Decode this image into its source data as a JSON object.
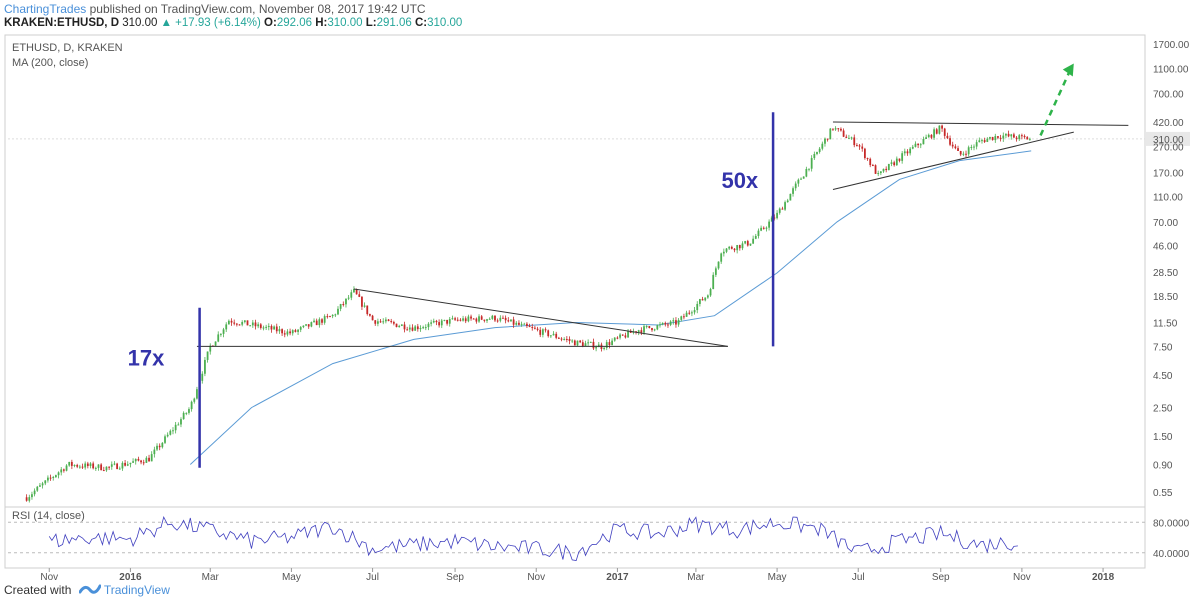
{
  "header": {
    "publisher": "ChartingTrades",
    "published_text": "published on TradingView.com, November 08, 2017 19:42 UTC"
  },
  "ticker": {
    "symbol": "KRAKEN:ETHUSD, D",
    "last": "310.00",
    "change": "▲ +17.93 (+6.14%)",
    "o_label": "O:",
    "o": "292.06",
    "h_label": "H:",
    "h": "310.00",
    "l_label": "L:",
    "l": "291.06",
    "c_label": "C:",
    "c": "310.00"
  },
  "main_panel": {
    "title": "ETHUSD, D, KRAKEN",
    "indicator": "MA (200, close)",
    "annotation_left": "17x",
    "annotation_right": "50x"
  },
  "rsi_panel": {
    "title": "RSI (14, close)"
  },
  "footer": {
    "created_with": "Created with",
    "brand": "TradingView"
  },
  "colors": {
    "candle_up": "#4caf50",
    "candle_down": "#c62828",
    "ma_line": "#5b9bd5",
    "rsi_line": "#3f3fbf",
    "annotation": "#3333aa",
    "arrow": "#2eb34a",
    "trendline": "#333333"
  },
  "chart_data": [
    {
      "type": "line",
      "title": "ETHUSD, D, KRAKEN",
      "scale": "log",
      "y_ticks": [
        "1700.00",
        "1100.00",
        "700.00",
        "420.00",
        "310.00",
        "270.00",
        "170.00",
        "110.00",
        "70.00",
        "46.00",
        "28.50",
        "18.50",
        "11.50",
        "7.50",
        "4.50",
        "2.50",
        "1.50",
        "0.90",
        "0.55"
      ],
      "x_ticks": [
        "Nov",
        "2016",
        "Mar",
        "May",
        "Jul",
        "Sep",
        "Nov",
        "2017",
        "Mar",
        "May",
        "Jul",
        "Sep",
        "Nov",
        "2018"
      ],
      "current_price_label": "310.00",
      "series": [
        {
          "name": "ETHUSD",
          "x": [
            "2015-10-15",
            "2015-11-15",
            "2015-12-15",
            "2016-01-15",
            "2016-02-15",
            "2016-03-01",
            "2016-03-15",
            "2016-04-01",
            "2016-05-01",
            "2016-06-01",
            "2016-06-17",
            "2016-07-01",
            "2016-08-01",
            "2016-09-01",
            "2016-10-01",
            "2016-11-01",
            "2016-12-01",
            "2016-12-20",
            "2017-01-15",
            "2017-02-15",
            "2017-03-10",
            "2017-03-20",
            "2017-04-10",
            "2017-05-01",
            "2017-05-20",
            "2017-06-12",
            "2017-07-01",
            "2017-07-16",
            "2017-08-01",
            "2017-09-01",
            "2017-09-15",
            "2017-10-01",
            "2017-10-15",
            "2017-11-08"
          ],
          "values": [
            0.5,
            0.9,
            0.85,
            1.0,
            2.5,
            7.5,
            12.0,
            11.0,
            9.5,
            13.0,
            20.0,
            12.0,
            10.5,
            12.0,
            12.5,
            10.0,
            8.0,
            7.5,
            10.0,
            11.5,
            19.0,
            42.0,
            48.0,
            80.0,
            160.0,
            380.0,
            280.0,
            160.0,
            220.0,
            380.0,
            230.0,
            300.0,
            330.0,
            310.0
          ]
        },
        {
          "name": "MA (200, close)",
          "x": [
            "2016-02-15",
            "2016-04-01",
            "2016-06-01",
            "2016-08-01",
            "2016-10-01",
            "2016-12-01",
            "2017-02-01",
            "2017-03-15",
            "2017-05-01",
            "2017-06-15",
            "2017-08-01",
            "2017-09-15",
            "2017-11-08"
          ],
          "values": [
            0.9,
            2.5,
            5.5,
            8.5,
            10.5,
            11.5,
            11.0,
            13.0,
            28.0,
            70.0,
            150.0,
            210.0,
            250.0
          ]
        }
      ]
    },
    {
      "type": "line",
      "title": "RSI (14, close)",
      "y_ticks": [
        "80.0000",
        "40.0000"
      ],
      "ylim": [
        20,
        100
      ],
      "series": [
        {
          "name": "RSI",
          "x": [
            "2015-11",
            "2015-12",
            "2016-01",
            "2016-02",
            "2016-03",
            "2016-04",
            "2016-05",
            "2016-06",
            "2016-07",
            "2016-08",
            "2016-09",
            "2016-10",
            "2016-11",
            "2016-12",
            "2017-01",
            "2017-02",
            "2017-03",
            "2017-04",
            "2017-05",
            "2017-06",
            "2017-07",
            "2017-08",
            "2017-09",
            "2017-10",
            "2017-11"
          ],
          "values": [
            55,
            60,
            58,
            80,
            70,
            55,
            60,
            75,
            45,
            50,
            55,
            48,
            45,
            40,
            70,
            65,
            78,
            70,
            80,
            72,
            40,
            55,
            65,
            50,
            55
          ]
        }
      ]
    }
  ]
}
